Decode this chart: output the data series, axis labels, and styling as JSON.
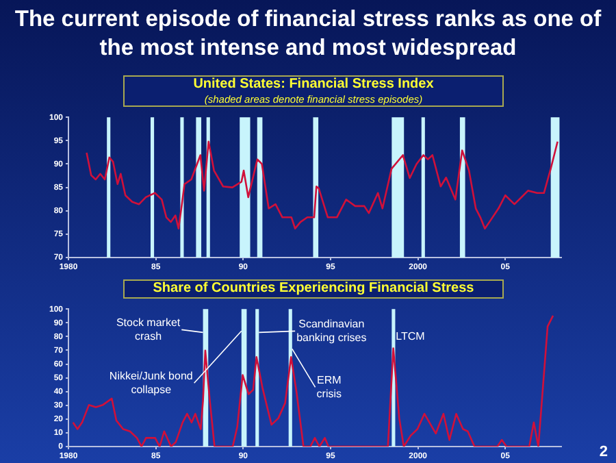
{
  "chart_data": [
    {
      "type": "other",
      "title": "The current episode of financial stress ranks as one of the most intense and most widespread",
      "annotations": [
        "2"
      ]
    },
    {
      "type": "line",
      "title": "United States: Financial Stress Index",
      "subtitle": "(shaded areas denote financial stress episodes)",
      "marker": "none",
      "series": [
        {
          "color": "#d0103a",
          "x": [
            1981.04,
            1981.3,
            1981.56,
            1981.82,
            1982.08,
            1982.34,
            1982.55,
            1982.81,
            1982.99,
            1983.26,
            1983.65,
            1984.04,
            1984.43,
            1984.95,
            1985.34,
            1985.6,
            1985.86,
            1986.12,
            1986.3,
            1986.51,
            1986.64,
            1987.03,
            1987.55,
            1987.76,
            1988.02,
            1988.33,
            1988.85,
            1989.38,
            1989.9,
            1990.03,
            1990.29,
            1990.81,
            1991.07,
            1991.46,
            1991.85,
            1992.24,
            1992.76,
            1992.97,
            1993.28,
            1993.67,
            1994.06,
            1994.19,
            1994.32,
            1994.84,
            1995.36,
            1995.89,
            1996.41,
            1996.93,
            1997.19,
            1997.71,
            1997.97,
            1998.49,
            1999.14,
            1999.53,
            1999.92,
            2000.31,
            2000.57,
            2000.83,
            2001.3,
            2001.61,
            2002.14,
            2002.53,
            2002.92,
            2003.31,
            2003.57,
            2003.83,
            2004.09,
            2004.61,
            2005.0,
            2005.52,
            2006.3,
            2006.82,
            2007.21,
            2007.6,
            2007.99
          ],
          "values": [
            92.4,
            87.6,
            86.7,
            87.9,
            86.7,
            91.4,
            90.5,
            85.7,
            87.9,
            83.3,
            81.9,
            81.4,
            82.9,
            83.8,
            82.4,
            78.6,
            77.6,
            79.0,
            76.2,
            81.9,
            85.7,
            86.7,
            91.9,
            84.3,
            94.8,
            88.6,
            85.2,
            85.0,
            86.2,
            88.6,
            82.9,
            91.0,
            90.0,
            80.5,
            81.4,
            78.6,
            78.6,
            76.2,
            77.6,
            78.6,
            78.6,
            85.2,
            84.8,
            78.6,
            78.6,
            82.4,
            81.0,
            81.0,
            79.5,
            83.8,
            80.5,
            89.0,
            91.9,
            87.0,
            90.0,
            91.9,
            91.0,
            91.9,
            85.2,
            87.1,
            82.4,
            92.9,
            88.6,
            80.5,
            78.6,
            76.2,
            77.6,
            80.5,
            83.3,
            81.4,
            84.3,
            83.8,
            83.8,
            89.0,
            94.8
          ]
        }
      ],
      "xlim": [
        1980,
        2008.2
      ],
      "xticks": [
        {
          "value": 1980,
          "label": "1980"
        },
        {
          "value": 1985,
          "label": "85"
        },
        {
          "value": 1990,
          "label": "90"
        },
        {
          "value": 1995,
          "label": "95"
        },
        {
          "value": 2000,
          "label": "2000"
        },
        {
          "value": 2005,
          "label": "05"
        }
      ],
      "ylim": [
        70,
        100
      ],
      "yticks": [
        70,
        75,
        80,
        85,
        90,
        95,
        100
      ],
      "bands": [
        {
          "axis": "x",
          "from": 1982.2,
          "to": 1982.4,
          "color": "#c8f4fc"
        },
        {
          "axis": "x",
          "from": 1984.7,
          "to": 1984.9,
          "color": "#c8f4fc"
        },
        {
          "axis": "x",
          "from": 1986.4,
          "to": 1986.6,
          "color": "#c8f4fc"
        },
        {
          "axis": "x",
          "from": 1987.3,
          "to": 1987.6,
          "color": "#c8f4fc"
        },
        {
          "axis": "x",
          "from": 1987.9,
          "to": 1988.1,
          "color": "#c8f4fc"
        },
        {
          "axis": "x",
          "from": 1989.8,
          "to": 1990.4,
          "color": "#c8f4fc"
        },
        {
          "axis": "x",
          "from": 1990.8,
          "to": 1991.1,
          "color": "#c8f4fc"
        },
        {
          "axis": "x",
          "from": 1994.0,
          "to": 1994.3,
          "color": "#c8f4fc"
        },
        {
          "axis": "x",
          "from": 1998.5,
          "to": 1999.2,
          "color": "#c8f4fc"
        },
        {
          "axis": "x",
          "from": 2000.2,
          "to": 2000.4,
          "color": "#c8f4fc"
        },
        {
          "axis": "x",
          "from": 2002.4,
          "to": 2002.7,
          "color": "#c8f4fc"
        },
        {
          "axis": "x",
          "from": 2007.6,
          "to": 2008.1,
          "color": "#c8f4fc"
        }
      ]
    },
    {
      "type": "line",
      "title": "Share of Countries Experiencing Financial Stress",
      "marker": "none",
      "series": [
        {
          "color": "#d0103a",
          "x": [
            1980.26,
            1980.52,
            1980.78,
            1981.17,
            1981.57,
            1981.96,
            1982.48,
            1982.74,
            1983.13,
            1983.52,
            1983.92,
            1984.18,
            1984.44,
            1984.96,
            1985.22,
            1985.48,
            1985.87,
            1986.14,
            1986.53,
            1986.79,
            1987.05,
            1987.26,
            1987.57,
            1987.7,
            1987.83,
            1988.09,
            1988.36,
            1989.4,
            1989.66,
            1989.97,
            1990.31,
            1990.57,
            1990.76,
            1991.1,
            1991.62,
            1992.01,
            1992.4,
            1992.74,
            1993.05,
            1993.45,
            1993.84,
            1994.1,
            1994.36,
            1994.67,
            1994.88,
            1998.28,
            1998.59,
            1998.93,
            1999.19,
            1999.58,
            1999.97,
            2000.37,
            2001.02,
            2001.46,
            2001.8,
            2002.19,
            2002.58,
            2002.85,
            2003.24,
            2004.54,
            2004.8,
            2005.07,
            2006.37,
            2006.63,
            2006.89,
            2007.42,
            2007.73
          ],
          "values": [
            17.5,
            12.7,
            17.5,
            30.2,
            28.6,
            30.2,
            34.9,
            19.0,
            12.7,
            11.1,
            6.3,
            0,
            6.3,
            6.3,
            0,
            11.1,
            0,
            3.2,
            17.5,
            23.8,
            17.5,
            23.8,
            12.7,
            33.3,
            69.8,
            33.3,
            0,
            0,
            14.3,
            52,
            38.1,
            41.3,
            65.1,
            42.9,
            15.9,
            20.6,
            31.7,
            65.1,
            39.7,
            0,
            0,
            6.3,
            0,
            6.3,
            0,
            0,
            71.4,
            20.6,
            0,
            7.9,
            12.7,
            23.8,
            9.5,
            23.8,
            4.8,
            23.8,
            12.7,
            11.1,
            0,
            0,
            4.8,
            0,
            0,
            17.5,
            0,
            87.3,
            95.2
          ]
        }
      ],
      "xlim": [
        1980,
        2008.2
      ],
      "xticks": [
        {
          "value": 1980,
          "label": "1980"
        },
        {
          "value": 1985,
          "label": "85"
        },
        {
          "value": 1990,
          "label": "90"
        },
        {
          "value": 1995,
          "label": "95"
        },
        {
          "value": 2000,
          "label": "2000"
        },
        {
          "value": 2005,
          "label": "05"
        }
      ],
      "ylim": [
        0,
        100
      ],
      "yticks": [
        0,
        10,
        20,
        30,
        40,
        50,
        60,
        70,
        80,
        90,
        100
      ],
      "bands": [
        {
          "axis": "x",
          "from": 1987.7,
          "to": 1988.0,
          "color": "#c8f4fc"
        },
        {
          "axis": "x",
          "from": 1989.9,
          "to": 1990.2,
          "color": "#c8f4fc"
        },
        {
          "axis": "x",
          "from": 1990.7,
          "to": 1990.9,
          "color": "#c8f4fc"
        },
        {
          "axis": "x",
          "from": 1992.6,
          "to": 1992.8,
          "color": "#c8f4fc"
        },
        {
          "axis": "x",
          "from": 1998.5,
          "to": 1998.7,
          "color": "#c8f4fc"
        }
      ],
      "annotations": [
        {
          "text": "Stock market crash",
          "x": 1987.7,
          "y": 83
        },
        {
          "text": "Nikkei/Junk bond collapse",
          "x": 1989.9,
          "y": 84
        },
        {
          "text": "Scandinavian banking crises",
          "x": 1990.9,
          "y": 83
        },
        {
          "text": "ERM crisis",
          "x": 1992.8,
          "y": 71
        },
        {
          "text": "LTCM",
          "x": 1998.7,
          "y": 80
        }
      ]
    }
  ]
}
